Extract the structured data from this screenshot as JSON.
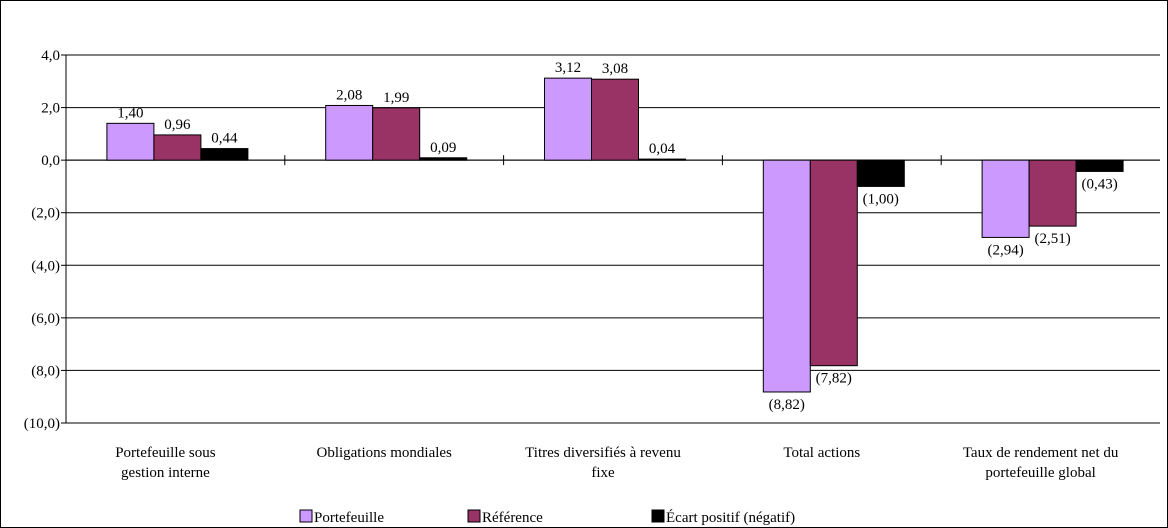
{
  "chart_data": {
    "type": "bar",
    "categories": [
      [
        "Portefeuille sous",
        "gestion interne"
      ],
      [
        "Obligations mondiales"
      ],
      [
        "Titres diversifiés à revenu",
        "fixe"
      ],
      [
        "Total actions"
      ],
      [
        "Taux de rendement net du",
        "portefeuille global"
      ]
    ],
    "series": [
      {
        "name": "Portefeuille",
        "color": "#cc99ff",
        "values": [
          1.4,
          2.08,
          3.12,
          -8.82,
          -2.94
        ],
        "labels": [
          "1,40",
          "2,08",
          "3,12",
          "(8,82)",
          "(2,94)"
        ]
      },
      {
        "name": "Référence",
        "color": "#993366",
        "values": [
          0.96,
          1.99,
          3.08,
          -7.82,
          -2.51
        ],
        "labels": [
          "0,96",
          "1,99",
          "3,08",
          "(7,82)",
          "(2,51)"
        ]
      },
      {
        "name": "Écart positif (négatif)",
        "color": "#000000",
        "values": [
          0.44,
          0.09,
          0.04,
          -1.0,
          -0.43
        ],
        "labels": [
          "0,44",
          "0,09",
          "0,04",
          "(1,00)",
          "(0,43)"
        ]
      }
    ],
    "ylim": [
      -10,
      4
    ],
    "yticks": [
      4,
      2,
      0,
      -2,
      -4,
      -6,
      -8,
      -10
    ],
    "ytick_labels": [
      "4,0",
      "2,0",
      "0,0",
      "(2,0)",
      "(4,0)",
      "(6,0)",
      "(8,0)",
      "(10,0)"
    ],
    "grid": true,
    "legend_position": "bottom"
  }
}
